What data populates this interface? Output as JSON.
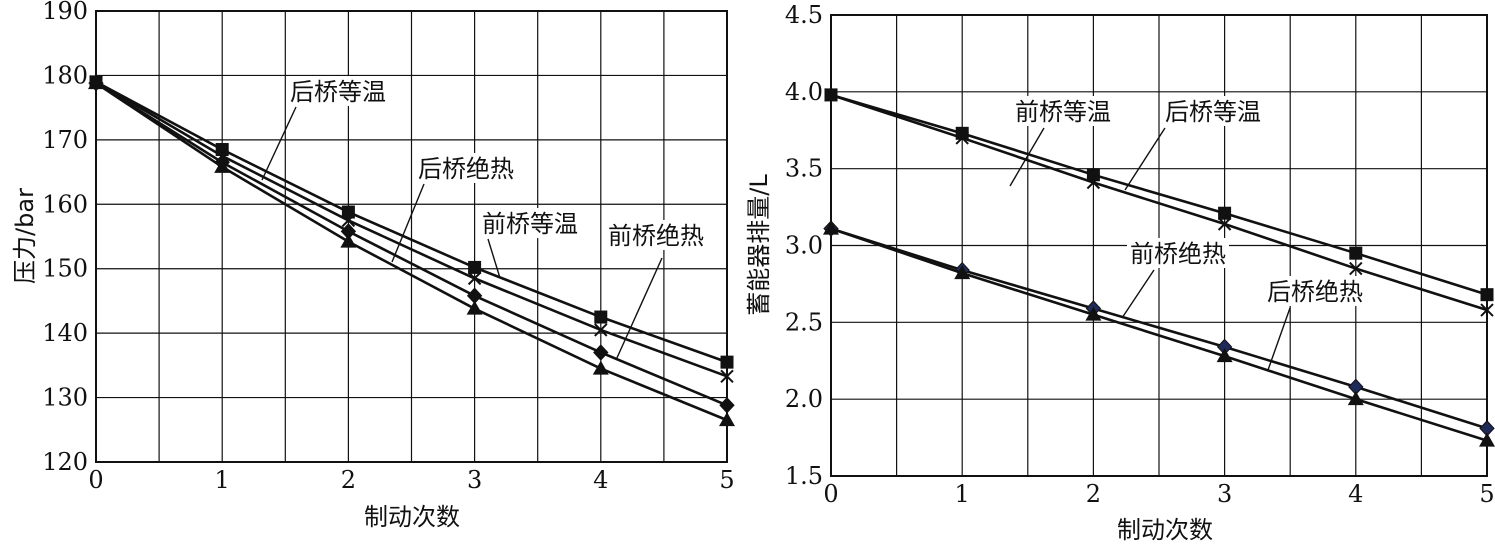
{
  "chart_data": [
    {
      "type": "line",
      "title": "",
      "xlabel": "制动次数",
      "ylabel": "压力/bar",
      "xlim": [
        0,
        5
      ],
      "ylim": [
        120,
        190
      ],
      "grid": true,
      "x": [
        0,
        1,
        2,
        3,
        4,
        5
      ],
      "xticks": [
        "0",
        "1",
        "2",
        "3",
        "4",
        "5"
      ],
      "yticks": [
        "120",
        "130",
        "140",
        "150",
        "160",
        "170",
        "180",
        "190"
      ],
      "series": [
        {
          "name": "后桥等温",
          "marker": "square",
          "values": [
            179,
            168.5,
            158.8,
            150.2,
            142.5,
            135.5
          ]
        },
        {
          "name": "前桥等温",
          "marker": "x",
          "values": [
            179,
            167.5,
            157.5,
            148.5,
            140.5,
            133.3
          ]
        },
        {
          "name": "前桥绝热",
          "marker": "diamond",
          "values": [
            178.8,
            166.5,
            155.8,
            145.8,
            137,
            128.8
          ]
        },
        {
          "name": "后桥绝热",
          "marker": "triangle",
          "values": [
            178.8,
            165.8,
            154.2,
            143.8,
            134.5,
            126.5
          ]
        }
      ],
      "annotations": [
        "后桥等温",
        "后桥绝热",
        "前桥等温",
        "前桥绝热"
      ]
    },
    {
      "type": "line",
      "title": "",
      "xlabel": "制动次数",
      "ylabel": "蓄能器排量/L",
      "xlim": [
        0,
        5
      ],
      "ylim": [
        1.5,
        4.5
      ],
      "grid": true,
      "x": [
        0,
        1,
        2,
        3,
        4,
        5
      ],
      "xticks": [
        "0",
        "1",
        "2",
        "3",
        "4",
        "5"
      ],
      "yticks": [
        "1.5",
        "2.0",
        "2.5",
        "3.0",
        "3.5",
        "4.0",
        "4.5"
      ],
      "series": [
        {
          "name": "后桥等温",
          "marker": "square",
          "values": [
            3.98,
            3.73,
            3.46,
            3.21,
            2.95,
            2.68
          ]
        },
        {
          "name": "前桥等温",
          "marker": "x",
          "values": [
            3.98,
            3.7,
            3.41,
            3.14,
            2.85,
            2.58
          ]
        },
        {
          "name": "前桥绝热",
          "marker": "diamond",
          "values": [
            3.11,
            2.84,
            2.59,
            2.34,
            2.08,
            1.81
          ]
        },
        {
          "name": "后桥绝热",
          "marker": "triangle",
          "values": [
            3.11,
            2.82,
            2.55,
            2.28,
            2.0,
            1.73
          ]
        }
      ],
      "annotations": [
        "前桥等温",
        "后桥等温",
        "前桥绝热",
        "后桥绝热"
      ]
    }
  ]
}
